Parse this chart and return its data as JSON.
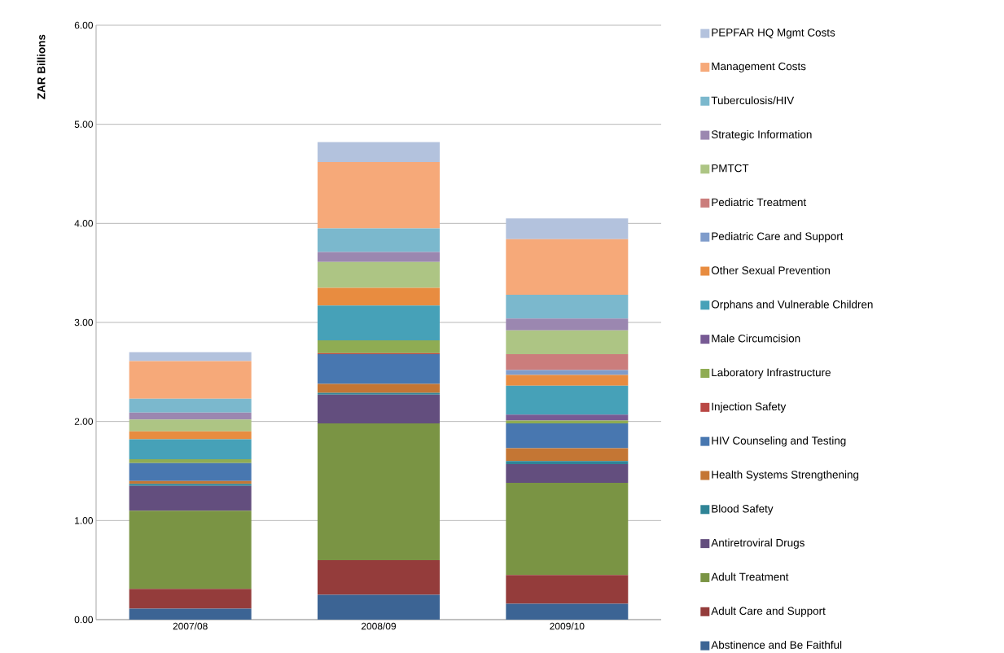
{
  "chart_data": {
    "type": "bar",
    "stacked": true,
    "ylabel": "ZAR Billions",
    "categories": [
      "2007/08",
      "2008/09",
      "2009/10"
    ],
    "ylim": [
      0,
      6
    ],
    "yticks": [
      {
        "value": 0,
        "label": "0.00"
      },
      {
        "value": 1,
        "label": "1.00"
      },
      {
        "value": 2,
        "label": "2.00"
      },
      {
        "value": 3,
        "label": "3.00"
      },
      {
        "value": 4,
        "label": "4.00"
      },
      {
        "value": 5,
        "label": "5.00"
      },
      {
        "value": 6,
        "label": "6.00"
      }
    ],
    "grid": "y",
    "legend": "right",
    "series": [
      {
        "name": "Abstinence and Be Faithful",
        "color": "#3c6494",
        "values": [
          0.11,
          0.25,
          0.16
        ]
      },
      {
        "name": "Adult Care and Support",
        "color": "#943c3b",
        "values": [
          0.2,
          0.35,
          0.29
        ]
      },
      {
        "name": "Adult Treatment",
        "color": "#7a9444",
        "values": [
          0.79,
          1.38,
          0.93
        ]
      },
      {
        "name": "Antiretroviral Drugs",
        "color": "#634e7e",
        "values": [
          0.25,
          0.29,
          0.19
        ]
      },
      {
        "name": "Blood Safety",
        "color": "#2f8496",
        "values": [
          0.02,
          0.02,
          0.03
        ]
      },
      {
        "name": "Health Systems Strengthening",
        "color": "#c47634",
        "values": [
          0.03,
          0.09,
          0.13
        ]
      },
      {
        "name": "HIV Counseling and Testing",
        "color": "#4877b0",
        "values": [
          0.18,
          0.3,
          0.25
        ]
      },
      {
        "name": "Injection Safety",
        "color": "#b94744",
        "values": [
          0,
          0.01,
          0
        ]
      },
      {
        "name": "Laboratory Infrastructure",
        "color": "#8fac53",
        "values": [
          0.04,
          0.13,
          0.03
        ]
      },
      {
        "name": "Male Circumcision",
        "color": "#775a94",
        "values": [
          0,
          0,
          0.06
        ]
      },
      {
        "name": "Orphans and Vulnerable Children",
        "color": "#46a1b8",
        "values": [
          0.2,
          0.35,
          0.29
        ]
      },
      {
        "name": "Other Sexual Prevention",
        "color": "#e88c40",
        "values": [
          0.08,
          0.18,
          0.11
        ]
      },
      {
        "name": "Pediatric Care and Support",
        "color": "#7f9ccb",
        "values": [
          0,
          0,
          0.05
        ]
      },
      {
        "name": "Pediatric Treatment",
        "color": "#cb7d7c",
        "values": [
          0,
          0,
          0.16
        ]
      },
      {
        "name": "PMTCT",
        "color": "#adc584",
        "values": [
          0.12,
          0.26,
          0.24
        ]
      },
      {
        "name": "Strategic Information",
        "color": "#9b87b0",
        "values": [
          0.07,
          0.1,
          0.12
        ]
      },
      {
        "name": "Tuberculosis/HIV",
        "color": "#7bb8cd",
        "values": [
          0.14,
          0.24,
          0.24
        ]
      },
      {
        "name": "Management Costs",
        "color": "#f6a979",
        "values": [
          0.38,
          0.67,
          0.56
        ]
      },
      {
        "name": "PEPFAR HQ Mgmt Costs",
        "color": "#b3c2dd",
        "values": [
          0.09,
          0.2,
          0.21
        ]
      }
    ]
  }
}
